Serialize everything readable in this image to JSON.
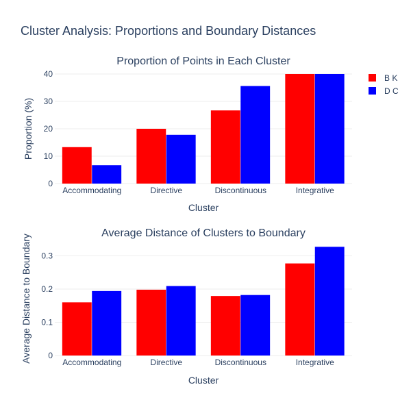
{
  "title": "Cluster Analysis: Proportions and Boundary Distances",
  "legend": [
    {
      "label": "B K",
      "color": "#ff0000"
    },
    {
      "label": "D C",
      "color": "#0000ff"
    }
  ],
  "chart_data": [
    {
      "type": "bar",
      "title": "Proportion of Points in Each Cluster",
      "xlabel": "Cluster",
      "ylabel": "Proportion (%)",
      "categories": [
        "Accommodating",
        "Directive",
        "Discontinuous",
        "Integrative"
      ],
      "ylim": [
        0,
        40
      ],
      "yticks": [
        0,
        10,
        20,
        30,
        40
      ],
      "series": [
        {
          "name": "B K",
          "color": "#ff0000",
          "values": [
            13.3,
            20.0,
            26.7,
            40.0
          ]
        },
        {
          "name": "D C",
          "color": "#0000ff",
          "values": [
            6.7,
            17.8,
            35.6,
            40.0
          ]
        }
      ],
      "grid": true
    },
    {
      "type": "bar",
      "title": "Average Distance of Clusters to Boundary",
      "xlabel": "Cluster",
      "ylabel": "Average Distance to Boundary",
      "categories": [
        "Accommodating",
        "Directive",
        "Discontinuous",
        "Integrative"
      ],
      "ylim": [
        0,
        0.34
      ],
      "yticks": [
        0,
        0.1,
        0.2,
        0.3
      ],
      "series": [
        {
          "name": "B K",
          "color": "#ff0000",
          "values": [
            0.16,
            0.198,
            0.179,
            0.277
          ]
        },
        {
          "name": "D C",
          "color": "#0000ff",
          "values": [
            0.194,
            0.209,
            0.182,
            0.327
          ]
        }
      ],
      "grid": true
    }
  ]
}
